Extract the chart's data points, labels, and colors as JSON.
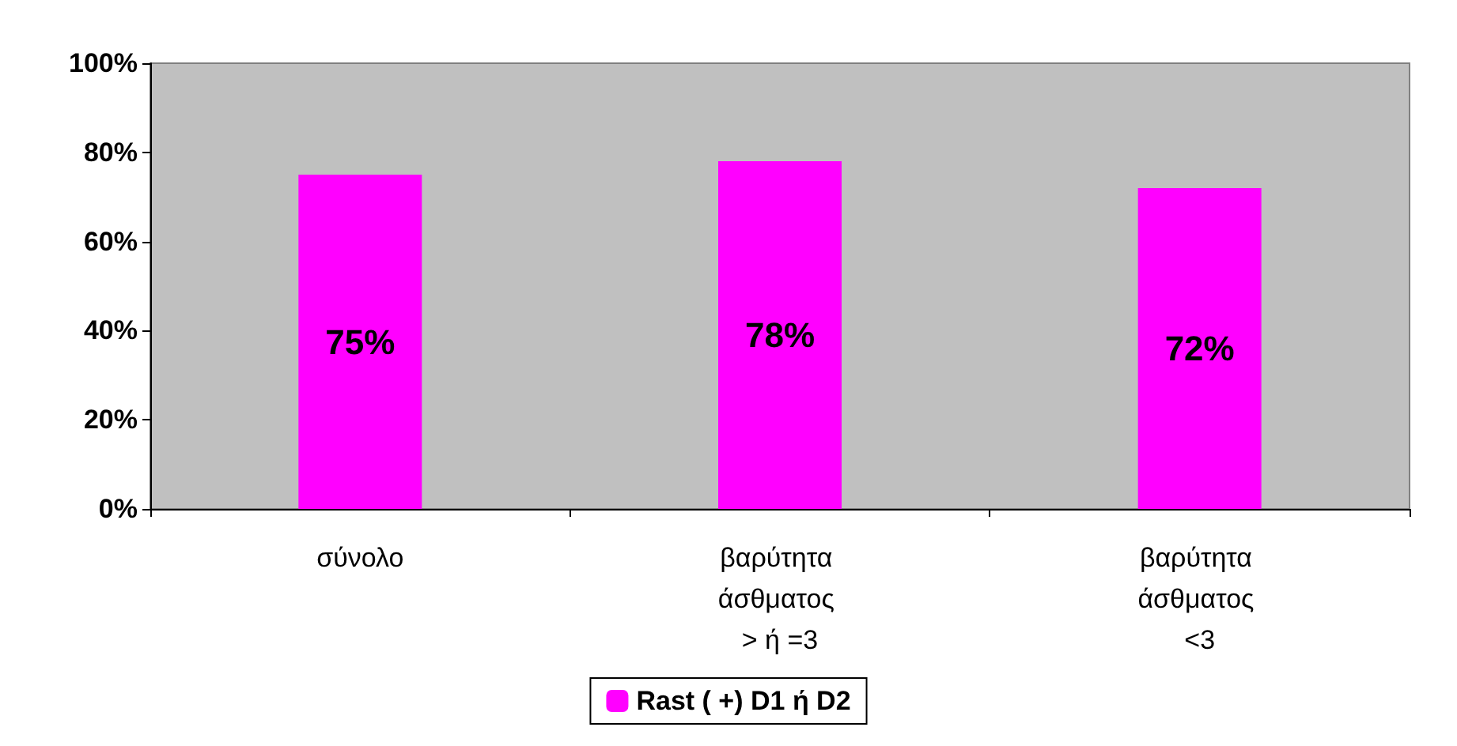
{
  "chart_data": {
    "type": "bar",
    "categories": [
      "σύνολο",
      "βαρύτητα άσθματος > ή =3",
      "βαρύτητα άσθματος <3"
    ],
    "series": [
      {
        "name": "Rast ( +) D1 ή D2",
        "color": "#ff00ff",
        "values": [
          75,
          78,
          72
        ],
        "value_labels": [
          "75%",
          "78%",
          "72%"
        ]
      }
    ],
    "ylim": [
      0,
      100
    ],
    "yticks": [
      {
        "value": 0,
        "label": "0%"
      },
      {
        "value": 20,
        "label": "20%"
      },
      {
        "value": 40,
        "label": "40%"
      },
      {
        "value": 60,
        "label": "60%"
      },
      {
        "value": 80,
        "label": "80%"
      },
      {
        "value": 100,
        "label": "100%"
      }
    ],
    "grid": false,
    "legend": "bottom"
  }
}
